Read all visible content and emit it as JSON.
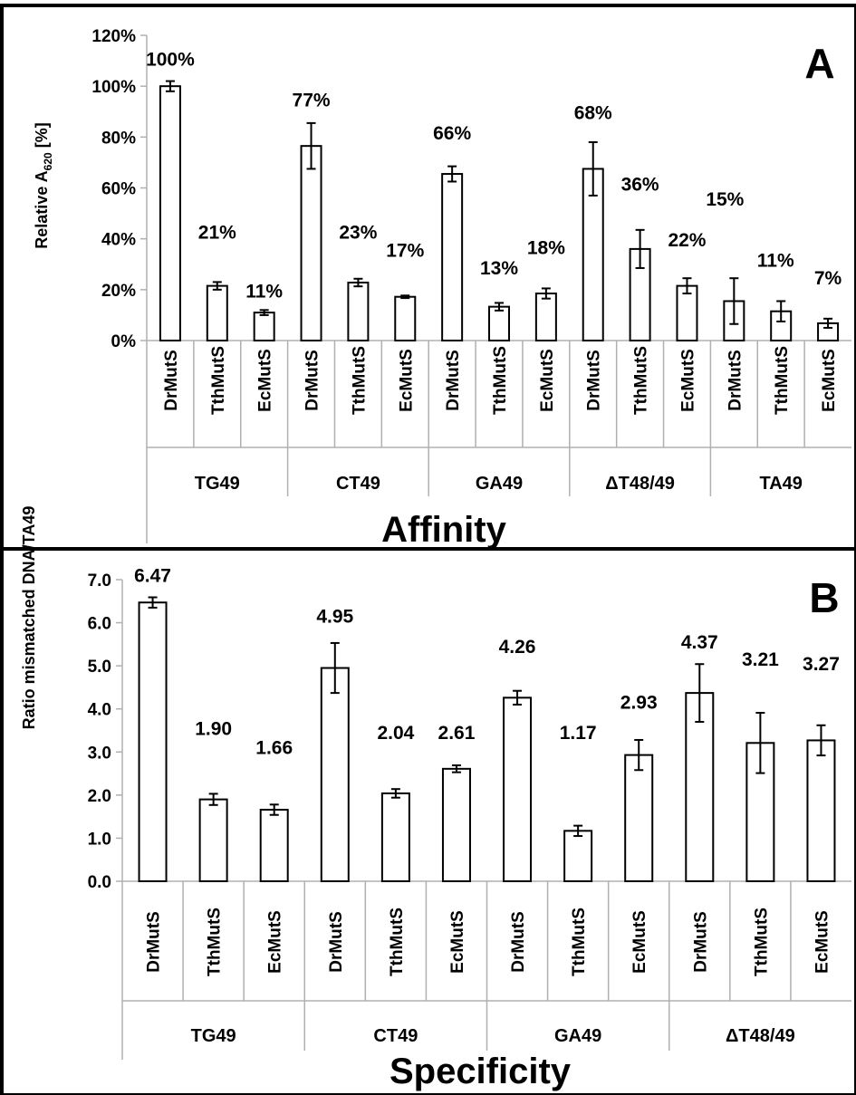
{
  "chart_data": [
    {
      "type": "bar",
      "panel_label": "A",
      "title": "Affinity",
      "ylabel_main": "Relative A",
      "ylabel_sub": "620",
      "ylabel_suffix": " [%]",
      "ylim": [
        0,
        120
      ],
      "yticks": [
        "0%",
        "20%",
        "40%",
        "60%",
        "80%",
        "100%",
        "120%"
      ],
      "groups": [
        "TG49",
        "CT49",
        "GA49",
        "ΔT48/49",
        "TA49"
      ],
      "categories": [
        "DrMutS",
        "TthMutS",
        "EcMutS",
        "DrMutS",
        "TthMutS",
        "EcMutS",
        "DrMutS",
        "TthMutS",
        "EcMutS",
        "DrMutS",
        "TthMutS",
        "EcMutS",
        "DrMutS",
        "TthMutS",
        "EcMutS"
      ],
      "values": [
        100,
        21,
        11,
        77,
        23,
        17,
        66,
        13,
        18,
        68,
        36,
        22,
        15,
        11,
        7
      ],
      "plot_values": [
        100,
        21.5,
        11,
        76.5,
        22.8,
        17.2,
        65.5,
        13.3,
        18.5,
        67.5,
        36,
        21.5,
        15.5,
        11.5,
        6.8
      ],
      "errors": [
        2,
        1.5,
        1,
        9,
        1.5,
        0.5,
        3,
        1.5,
        2,
        10.5,
        7.5,
        3,
        9,
        4,
        1.8
      ],
      "labels": [
        "100%",
        "21%",
        "11%",
        "77%",
        "23%",
        "17%",
        "66%",
        "13%",
        "18%",
        "68%",
        "36%",
        "22%",
        "15%",
        "11%",
        "7%"
      ],
      "label_level": [
        108,
        40,
        17,
        92,
        40,
        33,
        79,
        26,
        34,
        87,
        59,
        37,
        53,
        29,
        22
      ],
      "grid": false,
      "legend": "none"
    },
    {
      "type": "bar",
      "panel_label": "B",
      "title": "Specificity",
      "ylabel": "Ratio mismatched DNA/TA49",
      "ylim": [
        0,
        7
      ],
      "yticks": [
        "0.0",
        "1.0",
        "2.0",
        "3.0",
        "4.0",
        "5.0",
        "6.0",
        "7.0"
      ],
      "groups": [
        "TG49",
        "CT49",
        "GA49",
        "ΔT48/49"
      ],
      "categories": [
        "DrMutS",
        "TthMutS",
        "EcMutS",
        "DrMutS",
        "TthMutS",
        "EcMutS",
        "DrMutS",
        "TthMutS",
        "EcMutS",
        "DrMutS",
        "TthMutS",
        "EcMutS"
      ],
      "values": [
        6.47,
        1.9,
        1.66,
        4.95,
        2.04,
        2.61,
        4.26,
        1.17,
        2.93,
        4.37,
        3.21,
        3.27
      ],
      "errors": [
        0.12,
        0.13,
        0.12,
        0.58,
        0.1,
        0.08,
        0.16,
        0.12,
        0.35,
        0.67,
        0.7,
        0.35
      ],
      "labels": [
        "6.47",
        "1.90",
        "1.66",
        "4.95",
        "2.04",
        "2.61",
        "4.26",
        "1.17",
        "2.93",
        "4.37",
        "3.21",
        "3.27"
      ],
      "label_level": [
        6.95,
        3.4,
        2.95,
        6.0,
        3.3,
        3.3,
        5.3,
        3.3,
        4.0,
        5.4,
        5.0,
        4.9
      ],
      "grid": false,
      "legend": "none"
    }
  ]
}
